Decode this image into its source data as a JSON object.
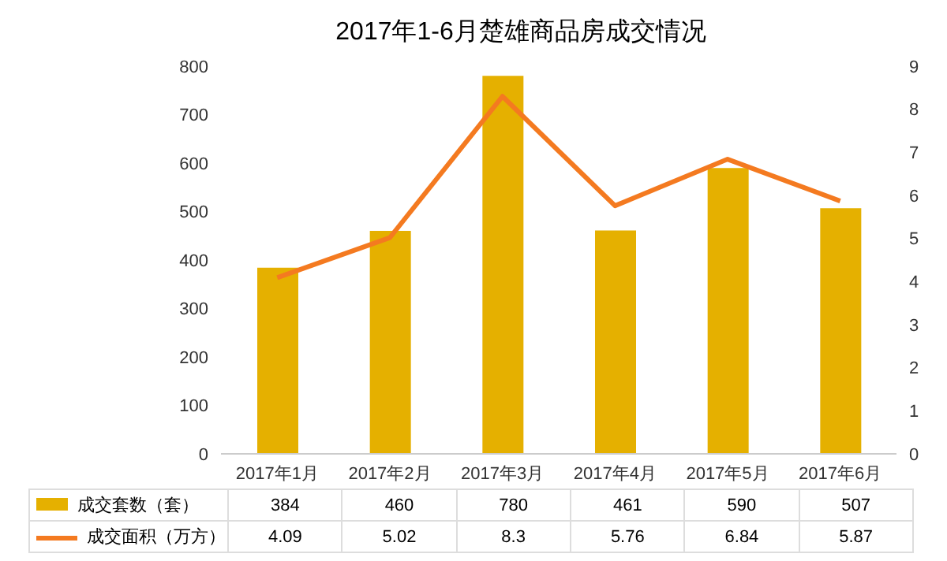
{
  "chart_data": {
    "type": "bar",
    "title": "2017年1-6月楚雄商品房成交情况",
    "categories": [
      "2017年1月",
      "2017年2月",
      "2017年3月",
      "2017年4月",
      "2017年5月",
      "2017年6月"
    ],
    "series": [
      {
        "name": "成交套数（套）",
        "color": "#e5b000",
        "values": [
          384,
          460,
          780,
          461,
          590,
          507
        ]
      },
      {
        "name": "成交面积（万方）",
        "type": "line",
        "axis": "y2",
        "color": "#f47a20",
        "values": [
          4.09,
          5.02,
          8.3,
          5.76,
          6.84,
          5.87
        ]
      }
    ],
    "ylim": [
      0,
      800
    ],
    "yticks": [
      0,
      100,
      200,
      300,
      400,
      500,
      600,
      700,
      800
    ],
    "y2lim": [
      0,
      9
    ],
    "y2ticks": [
      0,
      1,
      2,
      3,
      4,
      5,
      6,
      7,
      8,
      9
    ],
    "grid": false,
    "legend": "bottom",
    "data_labels": true,
    "marker": "none"
  }
}
